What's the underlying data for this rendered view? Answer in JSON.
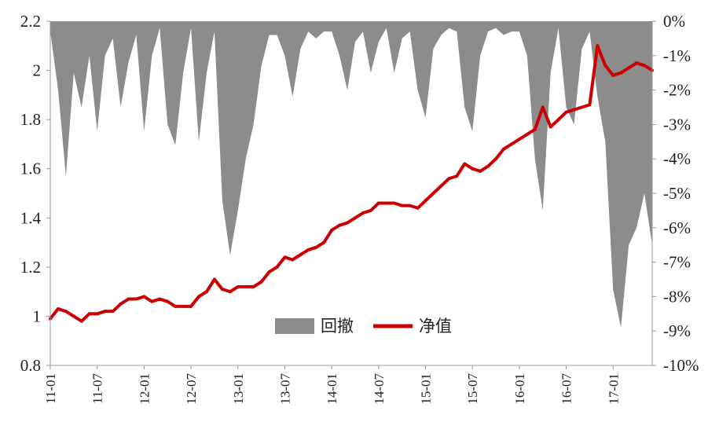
{
  "chart_data": {
    "type": "area",
    "x_ticks": [
      "11-01",
      "11-07",
      "12-01",
      "12-07",
      "13-01",
      "13-07",
      "14-01",
      "14-07",
      "15-01",
      "15-07",
      "16-01",
      "16-07",
      "17-01"
    ],
    "left_axis": {
      "ylim": [
        0.8,
        2.2
      ],
      "ticks": [
        "0.8",
        "1",
        "1.2",
        "1.4",
        "1.6",
        "1.8",
        "2",
        "2.2"
      ]
    },
    "right_axis": {
      "ylim": [
        -10,
        0
      ],
      "ticks": [
        "0%",
        "-1%",
        "-2%",
        "-3%",
        "-4%",
        "-5%",
        "-6%",
        "-7%",
        "-8%",
        "-9%",
        "-10%"
      ]
    },
    "legend": {
      "position": "center-bottom"
    },
    "colors": {
      "drawdown": "#8c8c8c",
      "nav": "#cc0000"
    },
    "series": [
      {
        "name": "回撤",
        "axis": "right",
        "style": "area",
        "x": [
          "11-01",
          "11-02",
          "11-03",
          "11-04",
          "11-05",
          "11-06",
          "11-07",
          "11-08",
          "11-09",
          "11-10",
          "11-11",
          "11-12",
          "12-01",
          "12-02",
          "12-03",
          "12-04",
          "12-05",
          "12-06",
          "12-07",
          "12-08",
          "12-09",
          "12-10",
          "12-11",
          "12-12",
          "13-01",
          "13-02",
          "13-03",
          "13-04",
          "13-05",
          "13-06",
          "13-07",
          "13-08",
          "13-09",
          "13-10",
          "13-11",
          "13-12",
          "14-01",
          "14-02",
          "14-03",
          "14-04",
          "14-05",
          "14-06",
          "14-07",
          "14-08",
          "14-09",
          "14-10",
          "14-11",
          "14-12",
          "15-01",
          "15-02",
          "15-03",
          "15-04",
          "15-05",
          "15-06",
          "15-07",
          "15-08",
          "15-09",
          "15-10",
          "15-11",
          "15-12",
          "16-01",
          "16-02",
          "16-03",
          "16-04",
          "16-05",
          "16-06",
          "16-07",
          "16-08",
          "16-09",
          "16-10",
          "16-11",
          "16-12",
          "17-01",
          "17-02",
          "17-03",
          "17-04",
          "17-05",
          "17-06"
        ],
        "values": [
          -0.3,
          -2.0,
          -4.5,
          -1.5,
          -2.5,
          -1.0,
          -3.2,
          -1.0,
          -0.5,
          -2.5,
          -1.2,
          -0.4,
          -3.2,
          -1.0,
          -0.2,
          -3.0,
          -3.6,
          -1.5,
          -0.2,
          -3.5,
          -1.5,
          -0.3,
          -5.2,
          -6.8,
          -5.5,
          -4.0,
          -3.0,
          -1.3,
          -0.4,
          -0.4,
          -1.0,
          -2.2,
          -0.8,
          -0.3,
          -0.5,
          -0.3,
          -0.3,
          -1.0,
          -2.0,
          -0.6,
          -0.3,
          -1.5,
          -0.6,
          -0.2,
          -1.5,
          -0.5,
          -0.3,
          -2.0,
          -2.8,
          -0.8,
          -0.4,
          -0.2,
          -0.3,
          -2.5,
          -3.2,
          -1.0,
          -0.3,
          -0.2,
          -0.4,
          -0.3,
          -0.3,
          -1.0,
          -4.0,
          -5.5,
          -1.5,
          -0.2,
          -2.5,
          -3.0,
          -0.8,
          -0.3,
          -2.2,
          -3.5,
          -7.8,
          -8.9,
          -6.5,
          -6.0,
          -5.0,
          -6.5
        ]
      },
      {
        "name": "净值",
        "axis": "left",
        "style": "line",
        "x": [
          "11-01",
          "11-02",
          "11-03",
          "11-04",
          "11-05",
          "11-06",
          "11-07",
          "11-08",
          "11-09",
          "11-10",
          "11-11",
          "11-12",
          "12-01",
          "12-02",
          "12-03",
          "12-04",
          "12-05",
          "12-06",
          "12-07",
          "12-08",
          "12-09",
          "12-10",
          "12-11",
          "12-12",
          "13-01",
          "13-02",
          "13-03",
          "13-04",
          "13-05",
          "13-06",
          "13-07",
          "13-08",
          "13-09",
          "13-10",
          "13-11",
          "13-12",
          "14-01",
          "14-02",
          "14-03",
          "14-04",
          "14-05",
          "14-06",
          "14-07",
          "14-08",
          "14-09",
          "14-10",
          "14-11",
          "14-12",
          "15-01",
          "15-02",
          "15-03",
          "15-04",
          "15-05",
          "15-06",
          "15-07",
          "15-08",
          "15-09",
          "15-10",
          "15-11",
          "15-12",
          "16-01",
          "16-02",
          "16-03",
          "16-04",
          "16-05",
          "16-06",
          "16-07",
          "16-08",
          "16-09",
          "16-10",
          "16-11",
          "16-12",
          "17-01",
          "17-02",
          "17-03",
          "17-04",
          "17-05",
          "17-06"
        ],
        "values": [
          0.99,
          1.03,
          1.02,
          1.0,
          0.98,
          1.01,
          1.01,
          1.02,
          1.02,
          1.05,
          1.07,
          1.07,
          1.08,
          1.06,
          1.07,
          1.06,
          1.04,
          1.04,
          1.04,
          1.08,
          1.1,
          1.15,
          1.11,
          1.1,
          1.12,
          1.12,
          1.12,
          1.14,
          1.18,
          1.2,
          1.24,
          1.23,
          1.25,
          1.27,
          1.28,
          1.3,
          1.35,
          1.37,
          1.38,
          1.4,
          1.42,
          1.43,
          1.46,
          1.46,
          1.46,
          1.45,
          1.45,
          1.44,
          1.47,
          1.5,
          1.53,
          1.56,
          1.57,
          1.62,
          1.6,
          1.59,
          1.61,
          1.64,
          1.68,
          1.7,
          1.72,
          1.74,
          1.76,
          1.85,
          1.77,
          1.8,
          1.83,
          1.84,
          1.85,
          1.86,
          2.1,
          2.02,
          1.98,
          1.99,
          2.01,
          2.03,
          2.02,
          2.0
        ]
      }
    ]
  }
}
